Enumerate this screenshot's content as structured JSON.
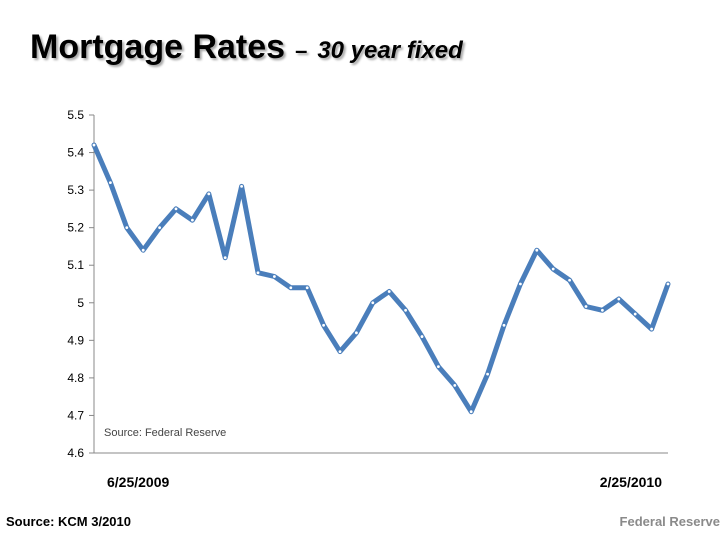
{
  "title": {
    "main": "Mortgage Rates",
    "dash": "–",
    "sub": "30 year fixed"
  },
  "footer": {
    "left": "Source: KCM 3/2010",
    "right": "Federal Reserve"
  },
  "colors": {
    "line": "#4a7ebb",
    "axis": "#888888",
    "text": "#000000",
    "note": "#444444"
  },
  "chart_data": {
    "type": "line",
    "title": "",
    "xlabel": "",
    "ylabel": "",
    "ylim": [
      4.6,
      5.5
    ],
    "yticks": [
      4.6,
      4.7,
      4.8,
      4.9,
      5,
      5.1,
      5.2,
      5.3,
      5.4,
      5.5
    ],
    "ytick_labels": [
      "4.6",
      "4.7",
      "4.8",
      "4.9",
      "5",
      "5.1",
      "5.2",
      "5.3",
      "5.4",
      "5.5"
    ],
    "x_labels": [
      "6/25/2009",
      "2/25/2010"
    ],
    "grid": false,
    "annotation": "Source: Federal Reserve",
    "series": [
      {
        "values": [
          5.42,
          5.32,
          5.2,
          5.14,
          5.2,
          5.25,
          5.22,
          5.29,
          5.12,
          5.31,
          5.08,
          5.07,
          5.04,
          5.04,
          4.94,
          4.87,
          4.92,
          5.0,
          5.03,
          4.98,
          4.91,
          4.83,
          4.78,
          4.71,
          4.81,
          4.94,
          5.05,
          5.14,
          5.09,
          5.06,
          4.99,
          4.98,
          5.01,
          4.97,
          4.93,
          5.05
        ]
      }
    ]
  }
}
